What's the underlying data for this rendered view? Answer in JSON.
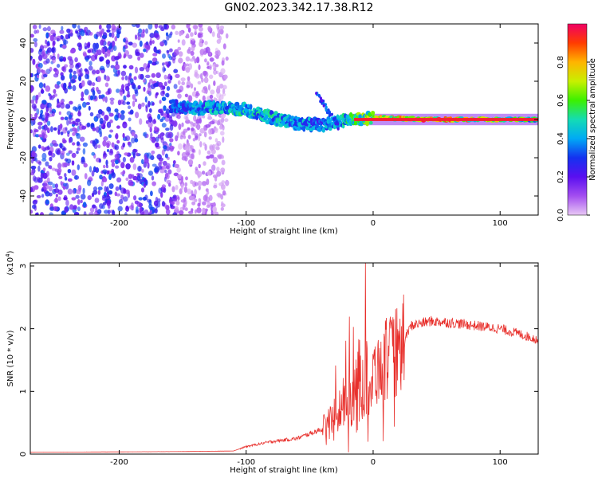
{
  "title": "GN02.2023.342.17.38.R12",
  "chart_data": [
    {
      "type": "heatmap",
      "title": "GN02.2023.342.17.38.R12",
      "xlabel": "Height of straight line (km)",
      "ylabel": "Frequency (Hz)",
      "xlim": [
        -270,
        130
      ],
      "ylim": [
        -50,
        50
      ],
      "xticks": [
        -200,
        -100,
        0,
        100
      ],
      "yticks": [
        -40,
        -20,
        0,
        20,
        40
      ],
      "colorbar": {
        "label": "Normalized spectral amplitude",
        "range": [
          0,
          1
        ],
        "ticks": [
          "0.0",
          "0.2",
          "0.4",
          "0.6",
          "0.8"
        ],
        "colors": [
          "#e8c8f5",
          "#a44ef0",
          "#5a0ff0",
          "#1432f0",
          "#00aaf5",
          "#14dcb4",
          "#3cf000",
          "#c8f000",
          "#ffb400",
          "#ff3c00",
          "#f00064"
        ]
      },
      "features": {
        "noise_region_x": [
          -270,
          -115
        ],
        "dense_noise_x": [
          -270,
          -155
        ],
        "signal_track": [
          {
            "x": -160,
            "f": 7,
            "amp": 0.35
          },
          {
            "x": -140,
            "f": 6,
            "amp": 0.45
          },
          {
            "x": -120,
            "f": 6,
            "amp": 0.5
          },
          {
            "x": -100,
            "f": 5,
            "amp": 0.5
          },
          {
            "x": -80,
            "f": 1,
            "amp": 0.5
          },
          {
            "x": -60,
            "f": -2,
            "amp": 0.45
          },
          {
            "x": -40,
            "f": -3,
            "amp": 0.4
          },
          {
            "x": -20,
            "f": 0,
            "amp": 0.55
          },
          {
            "x": 0,
            "f": 1,
            "amp": 0.75
          },
          {
            "x": 40,
            "f": 0,
            "amp": 0.95
          },
          {
            "x": 130,
            "f": 0,
            "amp": 0.55
          }
        ]
      }
    },
    {
      "type": "line",
      "xlabel": "Height of straight line (km)",
      "ylabel": "SNR (10 * v/v)",
      "y_multiplier": "(x10",
      "y_multiplier_exp": "4",
      "y_multiplier_close": ")",
      "xlim": [
        -270,
        130
      ],
      "ylim": [
        0,
        3.05
      ],
      "xticks": [
        -200,
        -100,
        0,
        100
      ],
      "yticks": [
        0,
        1,
        2,
        3
      ],
      "series": [
        {
          "color": "#e8302c",
          "envelope": [
            {
              "x": -270,
              "y": 0.03
            },
            {
              "x": -150,
              "y": 0.04
            },
            {
              "x": -110,
              "y": 0.05
            },
            {
              "x": -100,
              "y": 0.12
            },
            {
              "x": -80,
              "y": 0.2
            },
            {
              "x": -60,
              "y": 0.25
            },
            {
              "x": -40,
              "y": 0.4
            },
            {
              "x": -30,
              "y": 0.6
            },
            {
              "x": -20,
              "y": 0.9
            },
            {
              "x": -10,
              "y": 1.1
            },
            {
              "x": 0,
              "y": 1.3
            },
            {
              "x": 10,
              "y": 1.5
            },
            {
              "x": 20,
              "y": 1.65
            },
            {
              "x": 30,
              "y": 2.05
            },
            {
              "x": 45,
              "y": 2.12
            },
            {
              "x": 60,
              "y": 2.1
            },
            {
              "x": 80,
              "y": 2.05
            },
            {
              "x": 100,
              "y": 2.0
            },
            {
              "x": 115,
              "y": 1.92
            },
            {
              "x": 130,
              "y": 1.82
            }
          ],
          "peak": {
            "x": -6,
            "y": 3.05
          }
        }
      ]
    }
  ]
}
